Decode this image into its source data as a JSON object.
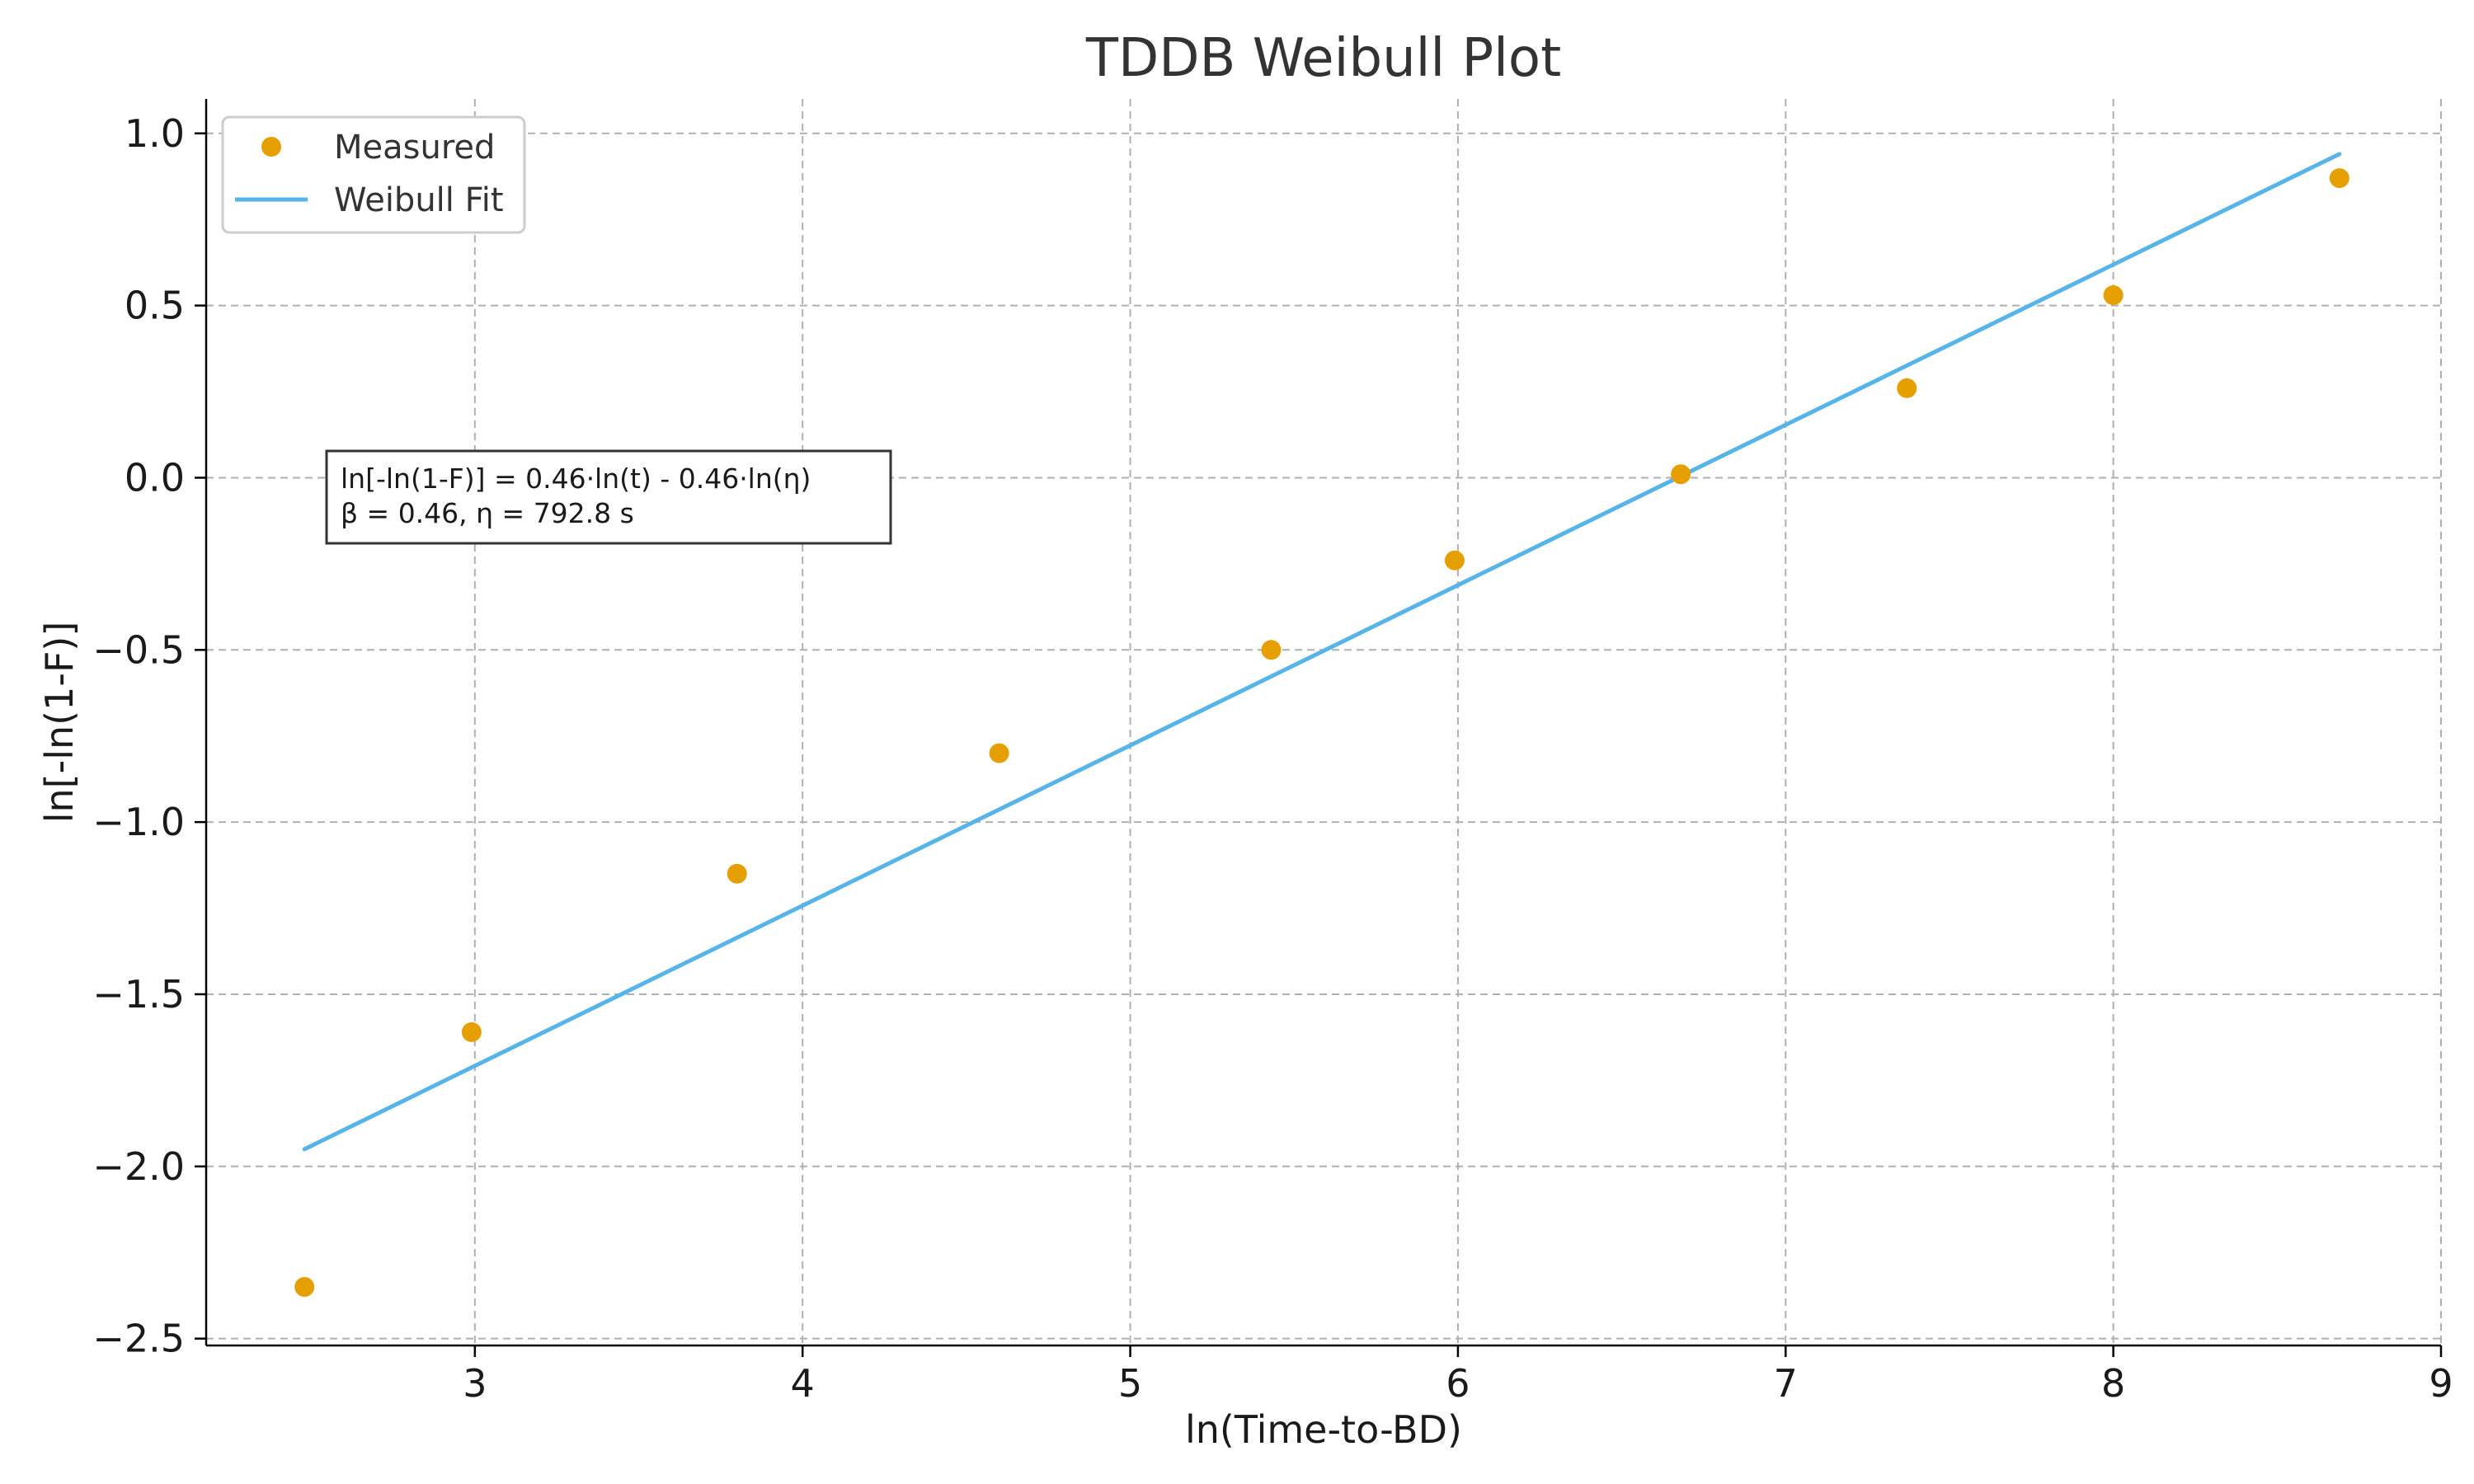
{
  "chart_data": {
    "type": "scatter",
    "title": "TDDB Weibull Plot",
    "xlabel": "ln(Time-to-BD)",
    "ylabel": "ln[-ln(1-F)]",
    "xlim": [
      2.18,
      9.0
    ],
    "ylim": [
      -2.52,
      1.1
    ],
    "xticks": [
      3,
      4,
      5,
      6,
      7,
      8,
      9
    ],
    "xtick_labels": [
      "3",
      "4",
      "5",
      "6",
      "7",
      "8",
      "9"
    ],
    "yticks": [
      -2.5,
      -2.0,
      -1.5,
      -1.0,
      -0.5,
      0.0,
      0.5,
      1.0
    ],
    "ytick_labels": [
      "−2.5",
      "−2.0",
      "−1.5",
      "−1.0",
      "−0.5",
      "0.0",
      "0.5",
      "1.0"
    ],
    "grid": true,
    "legend": "upper-left",
    "series": [
      {
        "name": "Measured",
        "kind": "scatter",
        "color": "#E69F00",
        "x": [
          2.48,
          2.99,
          3.8,
          4.6,
          5.43,
          5.99,
          6.68,
          7.37,
          8.0,
          8.69
        ],
        "y": [
          -2.35,
          -1.61,
          -1.15,
          -0.8,
          -0.5,
          -0.24,
          0.01,
          0.26,
          0.53,
          0.87
        ]
      },
      {
        "name": "Weibull Fit",
        "kind": "line",
        "color": "#56B4E9",
        "x": [
          2.48,
          8.69
        ],
        "y": [
          -1.95,
          0.94
        ]
      }
    ],
    "annotation": {
      "line1": "ln[-ln(1-F)] = 0.46·ln(t) - 0.46·ln(η)",
      "line2": "β = 0.46, η = 792.8 s"
    }
  }
}
